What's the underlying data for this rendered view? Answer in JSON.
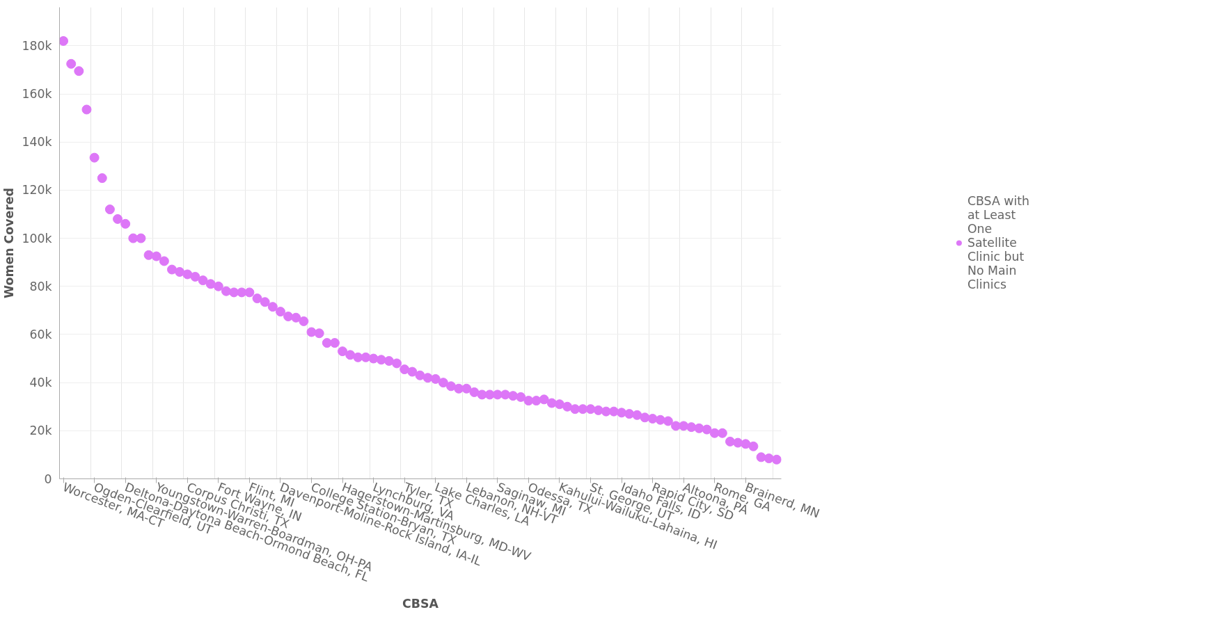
{
  "chart_data": {
    "type": "scatter",
    "xlabel": "CBSA",
    "ylabel": "Women Covered",
    "categories": [
      "Worcester, MA-CT",
      null,
      null,
      null,
      "Ogden-Clearfield, UT",
      null,
      null,
      null,
      "Deltona-Daytona Beach-Ormond Beach, FL",
      null,
      null,
      null,
      "Youngstown-Warren-Boardman, OH-PA",
      null,
      null,
      null,
      "Corpus Christi, TX",
      null,
      null,
      null,
      "Fort Wayne, IN",
      null,
      null,
      null,
      "Flint, MI",
      null,
      null,
      null,
      "Davenport-Moline-Rock Island, IA-IL",
      null,
      null,
      null,
      "College Station-Bryan, TX",
      null,
      null,
      null,
      "Hagerstown-Martinsburg, MD-WV",
      null,
      null,
      null,
      "Lynchburg, VA",
      null,
      null,
      null,
      "Tyler, TX",
      null,
      null,
      null,
      "Lake Charles, LA",
      null,
      null,
      null,
      "Lebanon, NH-VT",
      null,
      null,
      null,
      "Saginaw, MI",
      null,
      null,
      null,
      "Odessa, TX",
      null,
      null,
      null,
      "Kahului-Wailuku-Lahaina, HI",
      null,
      null,
      null,
      "St. George, UT",
      null,
      null,
      null,
      "Idaho Falls, ID",
      null,
      null,
      null,
      "Rapid City, SD",
      null,
      null,
      null,
      "Altoona, PA",
      null,
      null,
      null,
      "Rome, GA",
      null,
      null,
      null,
      "Brainerd, MN",
      null,
      null,
      null,
      null
    ],
    "series": [
      {
        "name": "CBSA with at Least One Satellite Clinic but No Main Clinics",
        "color": "#dd77f7",
        "values": [
          182000,
          172500,
          169500,
          153500,
          133500,
          125000,
          112000,
          108000,
          106000,
          100000,
          100000,
          93000,
          92500,
          90500,
          87000,
          86000,
          85000,
          84000,
          82500,
          81000,
          80000,
          78000,
          77500,
          77500,
          77500,
          75000,
          73500,
          71500,
          69500,
          67500,
          67000,
          65500,
          61000,
          60500,
          56500,
          56500,
          53000,
          51500,
          50500,
          50500,
          50000,
          49500,
          49000,
          48000,
          45500,
          44500,
          43000,
          42000,
          41500,
          40000,
          38500,
          37500,
          37500,
          36000,
          35000,
          35000,
          35000,
          35000,
          34500,
          34000,
          32500,
          32500,
          33000,
          31500,
          31000,
          30000,
          29000,
          29000,
          29000,
          28500,
          28000,
          28000,
          27500,
          27000,
          26500,
          25500,
          25000,
          24500,
          24000,
          22000,
          22000,
          21500,
          21000,
          20500,
          19000,
          19000,
          15500,
          15000,
          14500,
          13500,
          9000,
          8500,
          8000
        ]
      }
    ],
    "ylim": [
      0,
      196000
    ],
    "yticks": [
      0,
      {
        "value": 20000,
        "label": "20k"
      },
      {
        "value": 40000,
        "label": "40k"
      },
      {
        "value": 60000,
        "label": "60k"
      },
      {
        "value": 80000,
        "label": "80k"
      },
      {
        "value": 100000,
        "label": "100k"
      },
      {
        "value": 120000,
        "label": "120k"
      },
      {
        "value": 140000,
        "label": "140k"
      },
      {
        "value": 160000,
        "label": "160k"
      },
      {
        "value": 180000,
        "label": "180k"
      }
    ],
    "grid": true,
    "legend": "right",
    "marker": "circle"
  }
}
